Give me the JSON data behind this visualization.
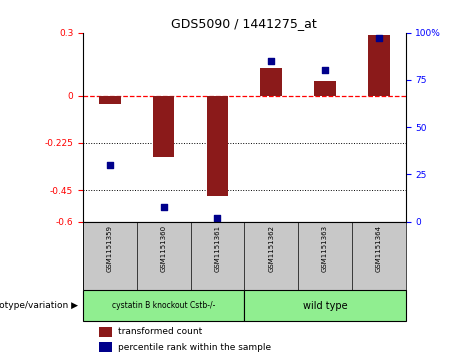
{
  "title": "GDS5090 / 1441275_at",
  "samples": [
    "GSM1151359",
    "GSM1151360",
    "GSM1151361",
    "GSM1151362",
    "GSM1151363",
    "GSM1151364"
  ],
  "transformed_count": [
    -0.04,
    -0.29,
    -0.48,
    0.13,
    0.07,
    0.29
  ],
  "percentile_rank": [
    30,
    8,
    2,
    85,
    80,
    97
  ],
  "group1_label": "cystatin B knockout Cstb-/-",
  "group2_label": "wild type",
  "group_color": "#90EE90",
  "sample_bg": "#C8C8C8",
  "ylim_left": [
    -0.6,
    0.3
  ],
  "ylim_right": [
    0,
    100
  ],
  "yticks_left": [
    0.3,
    0.0,
    -0.225,
    -0.45,
    -0.6
  ],
  "yticks_right": [
    100,
    75,
    50,
    25,
    0
  ],
  "dotted_lines": [
    -0.225,
    -0.45
  ],
  "bar_color": "#8B1A1A",
  "dot_color": "#00008B",
  "background_color": "#ffffff",
  "legend_red_label": "transformed count",
  "legend_blue_label": "percentile rank within the sample",
  "genotype_label": "genotype/variation"
}
